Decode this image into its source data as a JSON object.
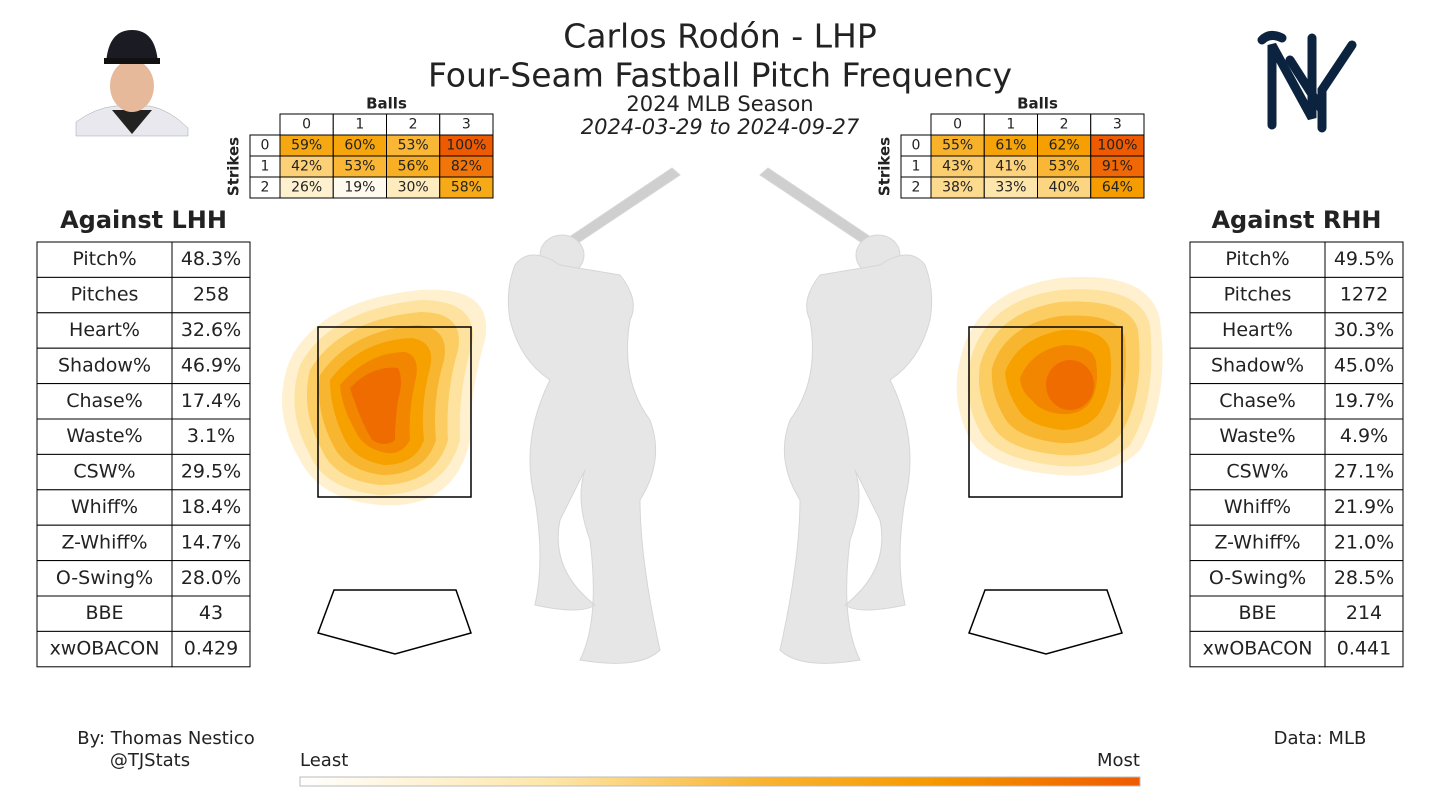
{
  "header": {
    "title": "Carlos Rodón - LHP",
    "subtitle": "Four-Seam Fastball Pitch Frequency",
    "season": "2024 MLB Season",
    "dates": "2024-03-29 to 2024-09-27"
  },
  "count_tables": [
    {
      "col_title": "Balls",
      "row_title": "Strikes",
      "balls": [
        "0",
        "1",
        "2",
        "3"
      ],
      "strikes": [
        "0",
        "1",
        "2"
      ],
      "cells": [
        [
          "59%",
          "60%",
          "53%",
          "100%"
        ],
        [
          "42%",
          "53%",
          "56%",
          "82%"
        ],
        [
          "26%",
          "19%",
          "30%",
          "58%"
        ]
      ]
    },
    {
      "col_title": "Balls",
      "row_title": "Strikes",
      "balls": [
        "0",
        "1",
        "2",
        "3"
      ],
      "strikes": [
        "0",
        "1",
        "2"
      ],
      "cells": [
        [
          "55%",
          "61%",
          "62%",
          "100%"
        ],
        [
          "43%",
          "41%",
          "53%",
          "91%"
        ],
        [
          "38%",
          "33%",
          "40%",
          "64%"
        ]
      ]
    }
  ],
  "splits": [
    {
      "title": "Against LHH",
      "rows": [
        [
          "Pitch%",
          "48.3%"
        ],
        [
          "Pitches",
          "258"
        ],
        [
          "Heart%",
          "32.6%"
        ],
        [
          "Shadow%",
          "46.9%"
        ],
        [
          "Chase%",
          "17.4%"
        ],
        [
          "Waste%",
          "3.1%"
        ],
        [
          "CSW%",
          "29.5%"
        ],
        [
          "Whiff%",
          "18.4%"
        ],
        [
          "Z-Whiff%",
          "14.7%"
        ],
        [
          "O-Swing%",
          "28.0%"
        ],
        [
          "BBE",
          "43"
        ],
        [
          "xwOBACON",
          "0.429"
        ]
      ]
    },
    {
      "title": "Against RHH",
      "rows": [
        [
          "Pitch%",
          "49.5%"
        ],
        [
          "Pitches",
          "1272"
        ],
        [
          "Heart%",
          "30.3%"
        ],
        [
          "Shadow%",
          "45.0%"
        ],
        [
          "Chase%",
          "19.7%"
        ],
        [
          "Waste%",
          "4.9%"
        ],
        [
          "CSW%",
          "27.1%"
        ],
        [
          "Whiff%",
          "21.9%"
        ],
        [
          "Z-Whiff%",
          "21.0%"
        ],
        [
          "O-Swing%",
          "28.5%"
        ],
        [
          "BBE",
          "214"
        ],
        [
          "xwOBACON",
          "0.441"
        ]
      ]
    }
  ],
  "legend": {
    "least": "Least",
    "most": "Most"
  },
  "footer": {
    "credit": "By: Thomas Nestico",
    "handle": "@TJStats",
    "source": "Data: MLB"
  }
}
